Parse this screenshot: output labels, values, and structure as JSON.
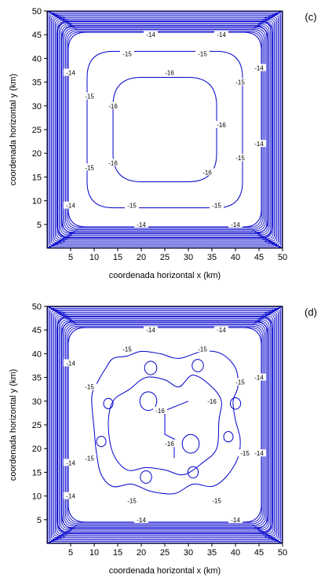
{
  "chart_data": [
    {
      "type": "contour",
      "panel_label": "(c)",
      "xlabel": "coordenada horizontal x (km)",
      "ylabel": "coordenada horizontal y (km)",
      "xlim": [
        0,
        50
      ],
      "ylim": [
        0,
        50
      ],
      "xticks": [
        5,
        10,
        15,
        20,
        25,
        30,
        35,
        40,
        45,
        50
      ],
      "yticks": [
        5,
        10,
        15,
        20,
        25,
        30,
        35,
        40,
        45,
        50
      ],
      "line_color": "#0000cc",
      "contours": [
        {
          "level": -14,
          "shape": "rounded-square",
          "extent": [
            4.5,
            45.5
          ]
        },
        {
          "level": -15,
          "shape": "rounded-square",
          "extent": [
            8.5,
            41.5
          ]
        },
        {
          "level": -16,
          "shape": "rounded-square",
          "extent": [
            14,
            37.5
          ]
        }
      ],
      "labels": [
        {
          "text": "-14",
          "x": 22,
          "y": 45
        },
        {
          "text": "-14",
          "x": 37,
          "y": 45
        },
        {
          "text": "-14",
          "x": 5,
          "y": 37
        },
        {
          "text": "-14",
          "x": 45,
          "y": 38
        },
        {
          "text": "-14",
          "x": 45,
          "y": 22
        },
        {
          "text": "-14",
          "x": 5,
          "y": 9
        },
        {
          "text": "-14",
          "x": 20,
          "y": 5
        },
        {
          "text": "-14",
          "x": 40,
          "y": 5
        },
        {
          "text": "-15",
          "x": 17,
          "y": 41
        },
        {
          "text": "-15",
          "x": 33,
          "y": 41
        },
        {
          "text": "-15",
          "x": 9,
          "y": 32
        },
        {
          "text": "-15",
          "x": 41,
          "y": 35
        },
        {
          "text": "-15",
          "x": 9,
          "y": 17
        },
        {
          "text": "-15",
          "x": 41,
          "y": 19
        },
        {
          "text": "-15",
          "x": 18,
          "y": 9
        },
        {
          "text": "-15",
          "x": 36,
          "y": 9
        },
        {
          "text": "-16",
          "x": 26,
          "y": 37
        },
        {
          "text": "-16",
          "x": 14,
          "y": 30
        },
        {
          "text": "-16",
          "x": 37,
          "y": 26
        },
        {
          "text": "-16",
          "x": 14,
          "y": 18
        },
        {
          "text": "-16",
          "x": 34,
          "y": 16
        }
      ]
    },
    {
      "type": "contour",
      "panel_label": "(d)",
      "xlabel": "coordenada horizontal x (km)",
      "ylabel": "coordenada horizontal y (km)",
      "xlim": [
        0,
        50
      ],
      "ylim": [
        0,
        50
      ],
      "xticks": [
        5,
        10,
        15,
        20,
        25,
        30,
        35,
        40,
        45,
        50
      ],
      "yticks": [
        5,
        10,
        15,
        20,
        25,
        30,
        35,
        40,
        45,
        50
      ],
      "line_color": "#0000cc",
      "contours": [
        {
          "level": -14,
          "shape": "rounded-square",
          "extent": [
            4.5,
            45.5
          ]
        },
        {
          "level": -15,
          "shape": "wavy-square",
          "extent": [
            9,
            41
          ]
        },
        {
          "level": -16,
          "shape": "islands"
        }
      ],
      "labels": [
        {
          "text": "-14",
          "x": 22,
          "y": 45
        },
        {
          "text": "-14",
          "x": 37,
          "y": 45
        },
        {
          "text": "-14",
          "x": 5,
          "y": 38
        },
        {
          "text": "-14",
          "x": 45,
          "y": 35
        },
        {
          "text": "-14",
          "x": 5,
          "y": 17
        },
        {
          "text": "-14",
          "x": 45,
          "y": 19
        },
        {
          "text": "-14",
          "x": 5,
          "y": 10
        },
        {
          "text": "-14",
          "x": 20,
          "y": 5
        },
        {
          "text": "-14",
          "x": 40,
          "y": 5
        },
        {
          "text": "-15",
          "x": 17,
          "y": 41
        },
        {
          "text": "-15",
          "x": 33,
          "y": 41
        },
        {
          "text": "-15",
          "x": 9,
          "y": 33
        },
        {
          "text": "-15",
          "x": 41,
          "y": 34
        },
        {
          "text": "-15",
          "x": 9,
          "y": 18
        },
        {
          "text": "-15",
          "x": 42,
          "y": 19
        },
        {
          "text": "-15",
          "x": 18,
          "y": 9
        },
        {
          "text": "-15",
          "x": 36,
          "y": 9
        },
        {
          "text": "-16",
          "x": 24,
          "y": 28
        },
        {
          "text": "-16",
          "x": 35,
          "y": 30
        },
        {
          "text": "-16",
          "x": 26,
          "y": 21
        }
      ]
    }
  ]
}
